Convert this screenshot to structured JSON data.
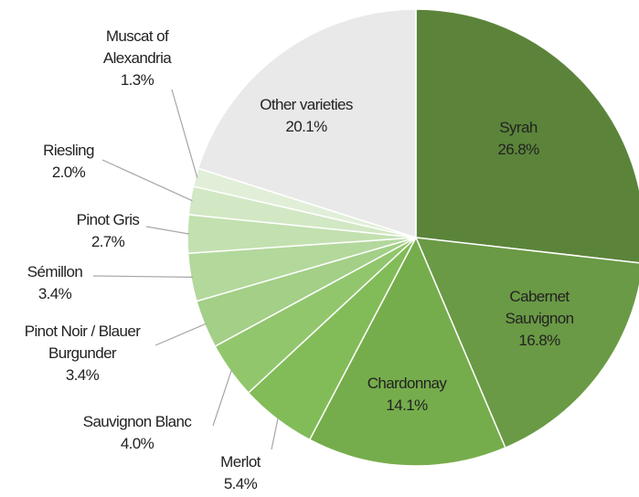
{
  "chart_data": {
    "type": "pie",
    "categories": [
      "Syrah",
      "Cabernet Sauvignon",
      "Chardonnay",
      "Merlot",
      "Sauvignon Blanc",
      "Pinot Noir / Blauer Burgunder",
      "Sémillon",
      "Pinot Gris",
      "Riesling",
      "Muscat of Alexandria",
      "Other varieties"
    ],
    "values": [
      26.8,
      16.8,
      14.1,
      5.4,
      4.0,
      3.4,
      3.4,
      2.7,
      2.0,
      1.3,
      20.1
    ],
    "value_labels": [
      "26.8%",
      "16.8%",
      "14.1%",
      "5.4%",
      "4.0%",
      "3.4%",
      "3.4%",
      "2.7%",
      "2.0%",
      "1.3%",
      "20.1%"
    ],
    "colors": [
      "#5b843a",
      "#6a9a45",
      "#76ad4c",
      "#82bc58",
      "#92c66d",
      "#a3cf86",
      "#b3d89c",
      "#c3e0b0",
      "#d2e8c4",
      "#e1efd8",
      "#e9e9e9"
    ]
  }
}
